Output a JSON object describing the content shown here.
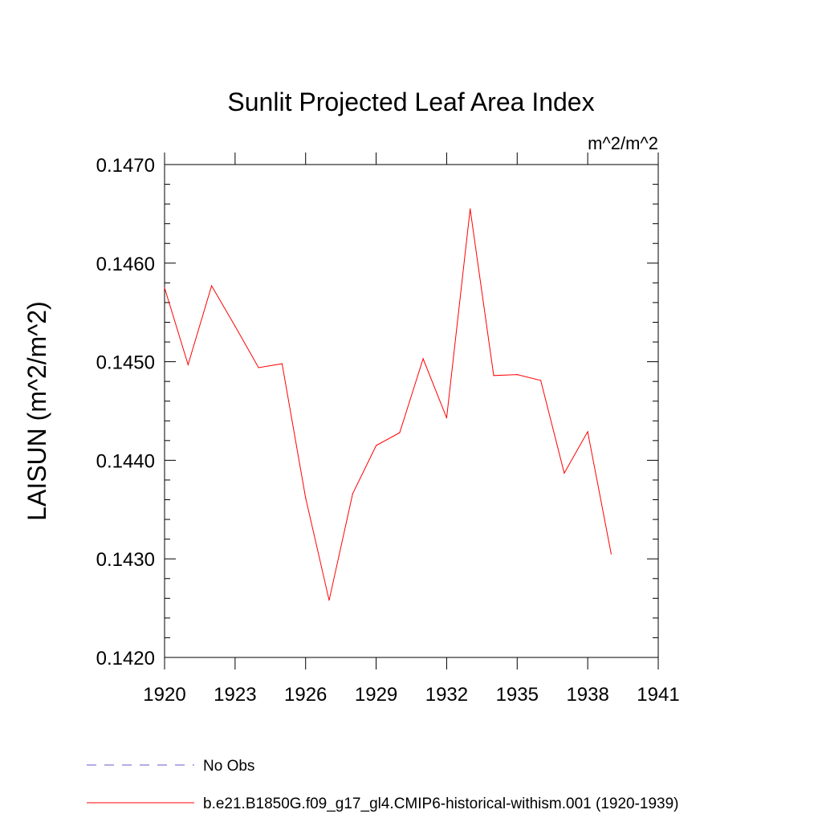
{
  "chart_data": {
    "type": "line",
    "title": "Sunlit Projected Leaf Area Index",
    "units_label": "m^2/m^2",
    "ylabel": "LAISUN  (m^2/m^2)",
    "xlabel": "",
    "xlim": [
      1920,
      1941
    ],
    "ylim": [
      0.142,
      0.147
    ],
    "x_ticks": [
      1920,
      1923,
      1926,
      1929,
      1932,
      1935,
      1938,
      1941
    ],
    "x_tick_labels": [
      "1920",
      "1923",
      "1926",
      "1929",
      "1932",
      "1935",
      "1938",
      "1941"
    ],
    "y_ticks": [
      0.142,
      0.143,
      0.144,
      0.145,
      0.146,
      0.147
    ],
    "y_tick_labels": [
      "0.1420",
      "0.1430",
      "0.1440",
      "0.1450",
      "0.1460",
      "0.1470"
    ],
    "grid": false,
    "legend_position": "bottom",
    "series": [
      {
        "name": "b.e21.B1850G.f09_g17_gl4.CMIP6-historical-withism.001 (1920-1939)",
        "color": "#ff0000",
        "style": "solid",
        "x": [
          1920,
          1921,
          1922,
          1923,
          1924,
          1925,
          1926,
          1927,
          1928,
          1929,
          1930,
          1931,
          1932,
          1933,
          1934,
          1935,
          1936,
          1937,
          1938,
          1939
        ],
        "y": [
          0.14575,
          0.14497,
          0.14577,
          0.14536,
          0.14494,
          0.14498,
          0.14362,
          0.14258,
          0.14366,
          0.14415,
          0.14428,
          0.14503,
          0.14443,
          0.14655,
          0.14486,
          0.14487,
          0.14481,
          0.14387,
          0.14429,
          0.14305
        ]
      },
      {
        "name": "No Obs",
        "color": "#6a5acd",
        "style": "dashed",
        "x": [],
        "y": []
      }
    ]
  }
}
